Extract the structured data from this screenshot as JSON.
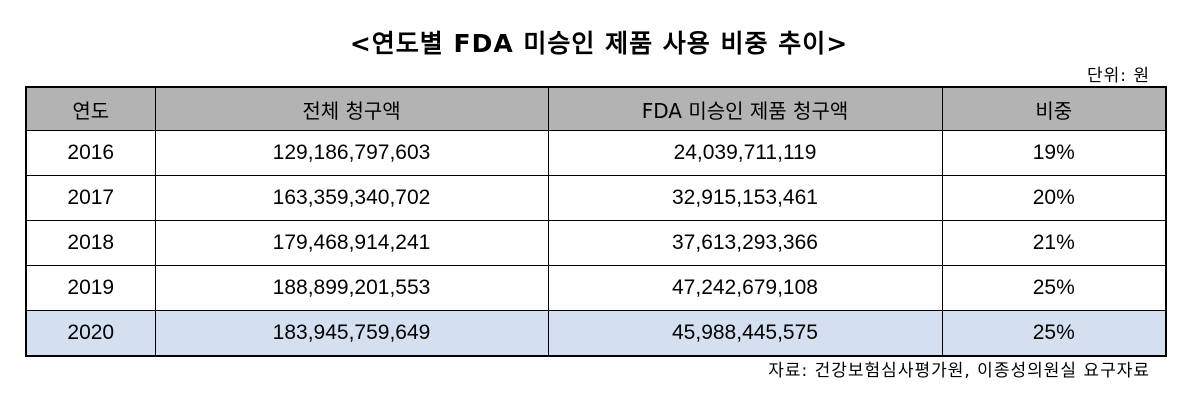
{
  "title": "<연도별 FDA 미승인 제품 사용 비중 추이>",
  "unit": "단위: 원",
  "table": {
    "headers": [
      "연도",
      "전체 청구액",
      "FDA 미승인 제품 청구액",
      "비중"
    ],
    "rows": [
      {
        "year": "2016",
        "total": "129,186,797,603",
        "unapproved": "24,039,711,119",
        "ratio": "19%"
      },
      {
        "year": "2017",
        "total": "163,359,340,702",
        "unapproved": "32,915,153,461",
        "ratio": "20%"
      },
      {
        "year": "2018",
        "total": "179,468,914,241",
        "unapproved": "37,613,293,366",
        "ratio": "21%"
      },
      {
        "year": "2019",
        "total": "188,899,201,553",
        "unapproved": "47,242,679,108",
        "ratio": "25%"
      },
      {
        "year": "2020",
        "total": "183,945,759,649",
        "unapproved": "45,988,445,575",
        "ratio": "25%"
      }
    ],
    "highlight_color": "#d4dff0",
    "header_color": "#b3b3b3"
  },
  "source": "자료: 건강보험심사평가원, 이종성의원실 요구자료"
}
